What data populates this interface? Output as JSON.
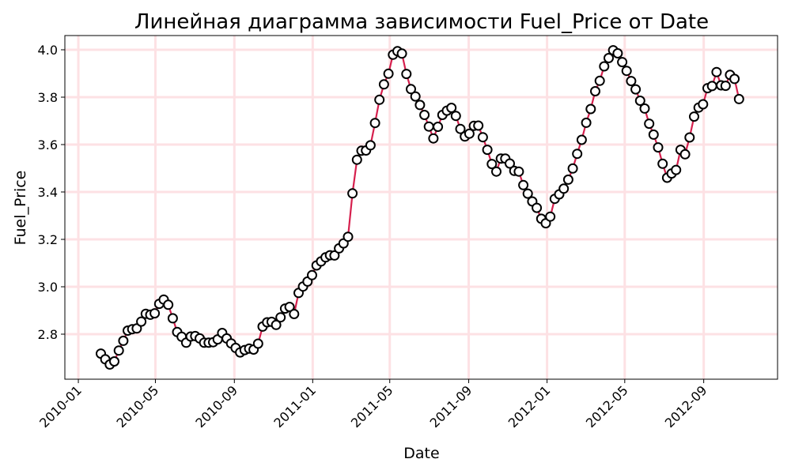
{
  "chart_data": {
    "type": "line",
    "title": "Линейная диаграмма зависимости Fuel_Price от Date",
    "xlabel": "Date",
    "ylabel": "Fuel_Price",
    "x_ticks": [
      "2010-01",
      "2010-05",
      "2010-09",
      "2011-01",
      "2011-05",
      "2011-09",
      "2012-01",
      "2012-05",
      "2012-09"
    ],
    "y_ticks": [
      "2.8",
      "3.0",
      "3.2",
      "3.4",
      "3.6",
      "3.8",
      "4.0"
    ],
    "xlim": [
      "2009-12-11",
      "2012-12-25"
    ],
    "ylim": [
      2.61,
      4.06
    ],
    "grid": true,
    "colors": {
      "line": "#d6204e",
      "marker_edge": "#000000",
      "marker_fill": "#ffffff",
      "grid": "#fde1e4"
    },
    "series": [
      {
        "x": [
          "2010-02-05",
          "2010-02-12",
          "2010-02-19",
          "2010-02-26",
          "2010-03-05",
          "2010-03-12",
          "2010-03-19",
          "2010-03-26",
          "2010-04-02",
          "2010-04-09",
          "2010-04-16",
          "2010-04-23",
          "2010-04-30",
          "2010-05-07",
          "2010-05-14",
          "2010-05-21",
          "2010-05-28",
          "2010-06-04",
          "2010-06-11",
          "2010-06-18",
          "2010-06-25",
          "2010-07-02",
          "2010-07-09",
          "2010-07-16",
          "2010-07-23",
          "2010-07-30",
          "2010-08-06",
          "2010-08-13",
          "2010-08-20",
          "2010-08-27",
          "2010-09-03",
          "2010-09-10",
          "2010-09-17",
          "2010-09-24",
          "2010-10-01",
          "2010-10-08",
          "2010-10-15",
          "2010-10-22",
          "2010-10-29",
          "2010-11-05",
          "2010-11-12",
          "2010-11-19",
          "2010-11-26",
          "2010-12-03",
          "2010-12-10",
          "2010-12-17",
          "2010-12-24",
          "2010-12-31",
          "2011-01-07",
          "2011-01-14",
          "2011-01-21",
          "2011-01-28",
          "2011-02-04",
          "2011-02-11",
          "2011-02-18",
          "2011-02-25",
          "2011-03-04",
          "2011-03-11",
          "2011-03-18",
          "2011-03-25",
          "2011-04-01",
          "2011-04-08",
          "2011-04-15",
          "2011-04-22",
          "2011-04-29",
          "2011-05-06",
          "2011-05-13",
          "2011-05-20",
          "2011-05-27",
          "2011-06-03",
          "2011-06-10",
          "2011-06-17",
          "2011-06-24",
          "2011-07-01",
          "2011-07-08",
          "2011-07-15",
          "2011-07-22",
          "2011-07-29",
          "2011-08-05",
          "2011-08-12",
          "2011-08-19",
          "2011-08-26",
          "2011-09-02",
          "2011-09-09",
          "2011-09-16",
          "2011-09-23",
          "2011-09-30",
          "2011-10-07",
          "2011-10-14",
          "2011-10-21",
          "2011-10-28",
          "2011-11-04",
          "2011-11-11",
          "2011-11-18",
          "2011-11-25",
          "2011-12-02",
          "2011-12-09",
          "2011-12-16",
          "2011-12-23",
          "2011-12-30",
          "2012-01-06",
          "2012-01-13",
          "2012-01-20",
          "2012-01-27",
          "2012-02-03",
          "2012-02-10",
          "2012-02-17",
          "2012-02-24",
          "2012-03-02",
          "2012-03-09",
          "2012-03-16",
          "2012-03-23",
          "2012-03-30",
          "2012-04-06",
          "2012-04-13",
          "2012-04-20",
          "2012-04-27",
          "2012-05-04",
          "2012-05-11",
          "2012-05-18",
          "2012-05-25",
          "2012-06-01",
          "2012-06-08",
          "2012-06-15",
          "2012-06-22",
          "2012-06-29",
          "2012-07-06",
          "2012-07-13",
          "2012-07-20",
          "2012-07-27",
          "2012-08-03",
          "2012-08-10",
          "2012-08-17",
          "2012-08-24",
          "2012-08-31",
          "2012-09-07",
          "2012-09-14",
          "2012-09-21",
          "2012-09-28",
          "2012-10-05",
          "2012-10-12",
          "2012-10-19",
          "2012-10-26"
        ],
        "values": [
          2.718,
          2.694,
          2.672,
          2.685,
          2.731,
          2.772,
          2.815,
          2.821,
          2.824,
          2.853,
          2.886,
          2.882,
          2.888,
          2.928,
          2.946,
          2.924,
          2.867,
          2.809,
          2.789,
          2.764,
          2.79,
          2.792,
          2.782,
          2.764,
          2.764,
          2.766,
          2.778,
          2.805,
          2.782,
          2.761,
          2.742,
          2.723,
          2.733,
          2.739,
          2.735,
          2.76,
          2.832,
          2.85,
          2.852,
          2.839,
          2.871,
          2.908,
          2.915,
          2.885,
          2.974,
          3.001,
          3.022,
          3.049,
          3.09,
          3.107,
          3.124,
          3.133,
          3.132,
          3.162,
          3.183,
          3.211,
          3.394,
          3.536,
          3.574,
          3.575,
          3.597,
          3.691,
          3.789,
          3.854,
          3.899,
          3.979,
          3.994,
          3.984,
          3.898,
          3.834,
          3.803,
          3.767,
          3.725,
          3.676,
          3.626,
          3.675,
          3.725,
          3.743,
          3.755,
          3.721,
          3.666,
          3.634,
          3.646,
          3.679,
          3.68,
          3.631,
          3.578,
          3.518,
          3.486,
          3.541,
          3.541,
          3.52,
          3.489,
          3.486,
          3.429,
          3.393,
          3.36,
          3.333,
          3.287,
          3.268,
          3.296,
          3.371,
          3.39,
          3.414,
          3.452,
          3.499,
          3.561,
          3.62,
          3.692,
          3.75,
          3.825,
          3.869,
          3.93,
          3.965,
          3.998,
          3.985,
          3.948,
          3.911,
          3.868,
          3.833,
          3.785,
          3.752,
          3.688,
          3.642,
          3.588,
          3.519,
          3.46,
          3.478,
          3.493,
          3.578,
          3.559,
          3.63,
          3.718,
          3.756,
          3.77,
          3.838,
          3.847,
          3.906,
          3.85,
          3.848,
          3.894,
          3.877,
          3.792
        ]
      }
    ]
  }
}
